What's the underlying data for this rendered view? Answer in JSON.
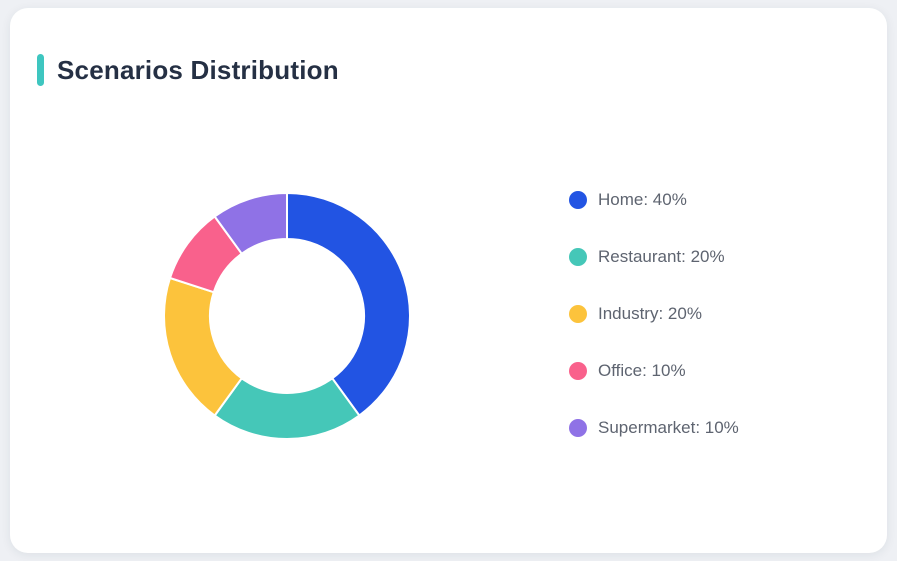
{
  "page": {
    "background_color": "#EEF0F4"
  },
  "card": {
    "background_color": "#FFFFFF"
  },
  "header": {
    "title": "Scenarios Distribution",
    "accent_color": "#3EC6C0",
    "title_color": "#253044"
  },
  "chart_data": {
    "type": "pie",
    "title": "Scenarios Distribution",
    "donut": true,
    "start_angle_deg": 0,
    "direction": "clockwise",
    "inner_radius_ratio": 0.63,
    "legend_position": "right",
    "unit": "%",
    "categories": [
      "Home",
      "Restaurant",
      "Industry",
      "Office",
      "Supermarket"
    ],
    "values": [
      40,
      20,
      20,
      10,
      10
    ],
    "colors": [
      "#2254E3",
      "#45C7B8",
      "#FCC33C",
      "#F9618C",
      "#8F72E6"
    ],
    "legend_labels": [
      "Home: 40%",
      "Restaurant: 20%",
      "Industry: 20%",
      "Office: 10%",
      "Supermarket: 10%"
    ]
  }
}
